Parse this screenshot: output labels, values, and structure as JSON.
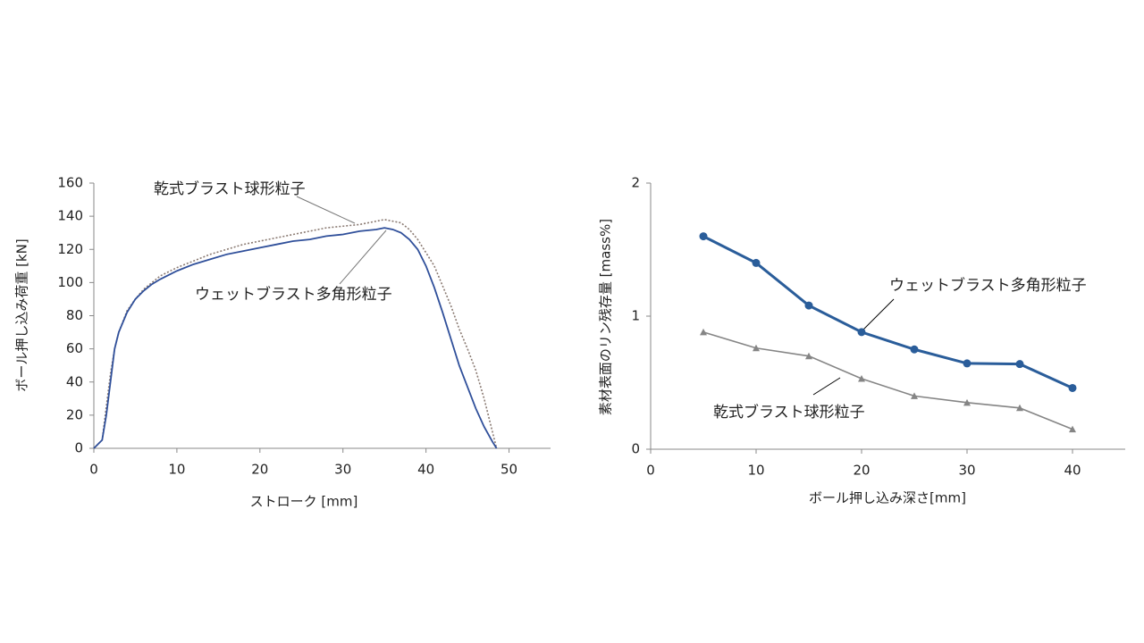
{
  "chart_data": [
    {
      "type": "line",
      "x_label": "ストローク [mm]",
      "y_label": "ボール押し込み荷重 [kN]",
      "xlim": [
        0,
        55
      ],
      "xticks": [
        0,
        10,
        20,
        30,
        40,
        50
      ],
      "ylim": [
        0,
        160
      ],
      "yticks": [
        0,
        20,
        40,
        60,
        80,
        100,
        120,
        140,
        160
      ],
      "series": [
        {
          "name": "乾式ブラスト球形粒子",
          "color": "#8a7a72",
          "dash": true,
          "x": [
            0,
            1,
            1.5,
            2,
            2.5,
            3,
            4,
            5,
            6,
            7,
            8,
            10,
            12,
            14,
            16,
            18,
            20,
            22,
            24,
            26,
            28,
            30,
            32,
            34,
            35,
            36,
            37,
            38,
            39,
            40,
            41,
            42,
            43,
            44,
            45,
            46,
            47,
            48,
            48.5
          ],
          "values": [
            0,
            5,
            25,
            45,
            60,
            70,
            83,
            90,
            96,
            100,
            104,
            109,
            113,
            117,
            120,
            123,
            125,
            127,
            129,
            131,
            133,
            134,
            135,
            137,
            138,
            137,
            136,
            132,
            126,
            118,
            110,
            98,
            86,
            72,
            60,
            47,
            30,
            10,
            0
          ]
        },
        {
          "name": "ウェットブラスト多角形粒子",
          "color": "#2f4f9a",
          "dash": false,
          "x": [
            0,
            1,
            1.5,
            2,
            2.5,
            3,
            4,
            5,
            6,
            7,
            8,
            10,
            12,
            14,
            16,
            18,
            20,
            22,
            24,
            26,
            28,
            30,
            32,
            34,
            35,
            36,
            37,
            38,
            39,
            40,
            41,
            42,
            43,
            44,
            45,
            46,
            47,
            48,
            48.5
          ],
          "values": [
            0,
            5,
            20,
            40,
            60,
            70,
            82,
            90,
            95,
            99,
            102,
            107,
            111,
            114,
            117,
            119,
            121,
            123,
            125,
            126,
            128,
            129,
            131,
            132,
            133,
            132,
            130,
            126,
            120,
            110,
            97,
            82,
            66,
            50,
            37,
            24,
            13,
            4,
            0
          ]
        }
      ]
    },
    {
      "type": "line",
      "x_label": "ボール押し込み深さ[mm]",
      "y_label": "素材表面のリン残存量 [mass%]",
      "xlim": [
        0,
        45
      ],
      "xticks": [
        0,
        10,
        20,
        30,
        40
      ],
      "ylim": [
        0,
        2
      ],
      "yticks": [
        0,
        1,
        2
      ],
      "series": [
        {
          "name": "ウェットブラスト多角形粒子",
          "color": "#2a5d9a",
          "marker": "circle",
          "x": [
            5,
            10,
            15,
            20,
            25,
            30,
            35,
            40
          ],
          "values": [
            1.6,
            1.4,
            1.08,
            0.88,
            0.75,
            0.645,
            0.64,
            0.46
          ]
        },
        {
          "name": "乾式ブラスト球形粒子",
          "color": "#858585",
          "marker": "triangle",
          "x": [
            5,
            10,
            15,
            20,
            25,
            30,
            35,
            40
          ],
          "values": [
            0.88,
            0.76,
            0.7,
            0.53,
            0.4,
            0.35,
            0.31,
            0.15
          ]
        }
      ]
    }
  ]
}
